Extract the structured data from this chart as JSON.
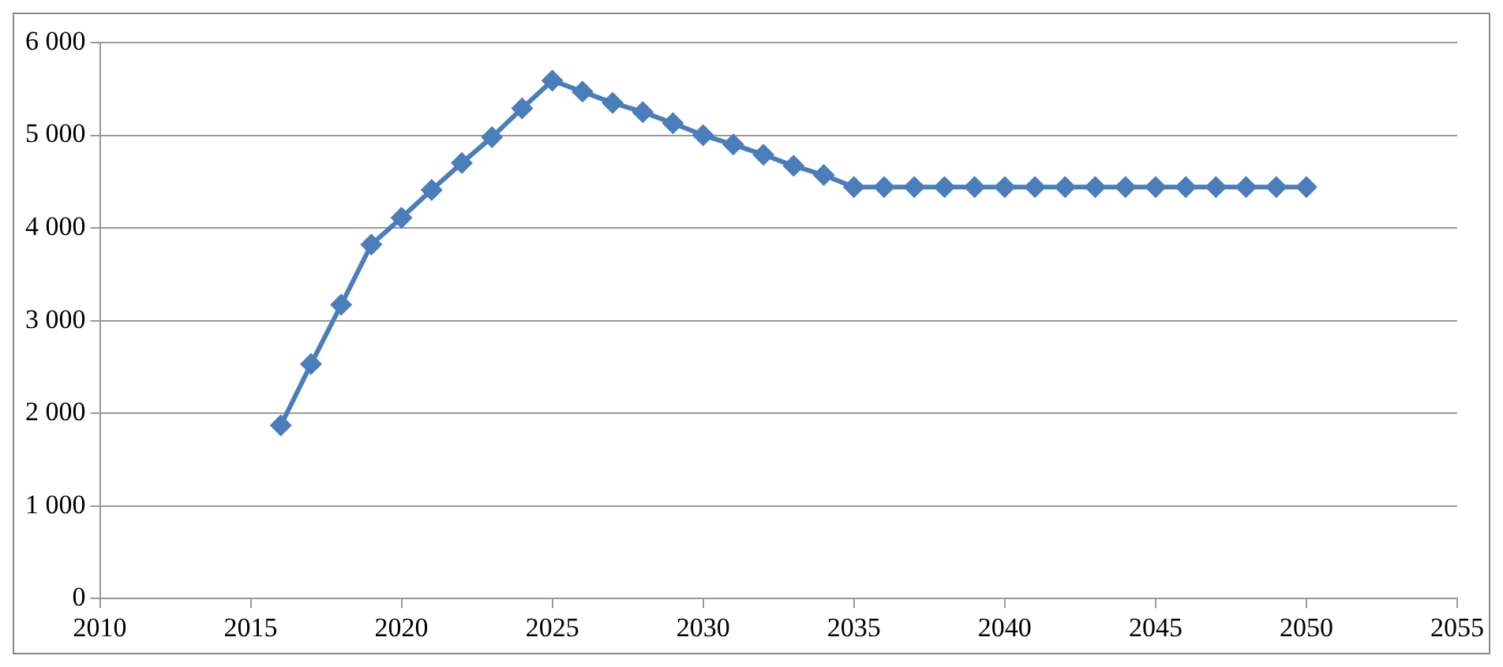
{
  "chart_data": {
    "type": "line",
    "x": [
      2016,
      2017,
      2018,
      2019,
      2020,
      2021,
      2022,
      2023,
      2024,
      2025,
      2026,
      2027,
      2028,
      2029,
      2030,
      2031,
      2032,
      2033,
      2034,
      2035,
      2036,
      2037,
      2038,
      2039,
      2040,
      2041,
      2042,
      2043,
      2044,
      2045,
      2046,
      2047,
      2048,
      2049,
      2050
    ],
    "series": [
      {
        "color": "#4a7ebb",
        "values": [
          1870,
          2530,
          3170,
          3820,
          4110,
          4410,
          4700,
          4980,
          5290,
          5590,
          5470,
          5350,
          5250,
          5130,
          5000,
          4900,
          4790,
          4670,
          4570,
          4440,
          4440,
          4440,
          4440,
          4440,
          4440,
          4440,
          4440,
          4440,
          4440,
          4440,
          4440,
          4440,
          4440,
          4440,
          4440
        ]
      }
    ],
    "xlim": [
      2010,
      2055
    ],
    "xticks": [
      2010,
      2015,
      2020,
      2025,
      2030,
      2035,
      2040,
      2045,
      2050,
      2055
    ],
    "ylim": [
      0,
      6000
    ],
    "yticks": [
      0,
      {
        "value": 1000,
        "label": "1 000"
      },
      {
        "value": 2000,
        "label": "2 000"
      },
      {
        "value": 3000,
        "label": "3 000"
      },
      {
        "value": 4000,
        "label": "4 000"
      },
      {
        "value": 5000,
        "label": "5 000"
      },
      {
        "value": 6000,
        "label": "6 000"
      }
    ],
    "grid": "y",
    "legend": false,
    "marker": "diamond",
    "line_style": "solid"
  }
}
